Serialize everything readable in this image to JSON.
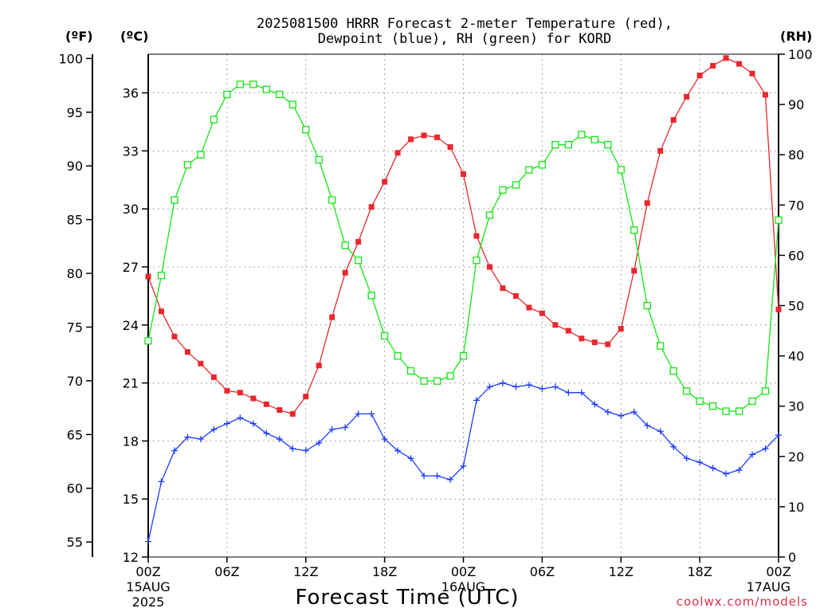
{
  "chart_data": {
    "type": "line",
    "title_line1": "2025081500 HRRR Forecast 2-meter Temperature (red),",
    "title_line2": "Dewpoint (blue), RH (green) for KORD",
    "xlabel": "Forecast Time (UTC)",
    "credit": "coolwx.com/models",
    "units": {
      "fahrenheit": "(ºF)",
      "celsius": "(ºC)",
      "rh": "(RH)"
    },
    "x_hours": [
      0,
      1,
      2,
      3,
      4,
      5,
      6,
      7,
      8,
      9,
      10,
      11,
      12,
      13,
      14,
      15,
      16,
      17,
      18,
      19,
      20,
      21,
      22,
      23,
      24,
      25,
      26,
      27,
      28,
      29,
      30,
      31,
      32,
      33,
      34,
      35,
      36,
      37,
      38,
      39,
      40,
      41,
      42,
      43,
      44,
      45,
      46,
      47,
      48
    ],
    "xlim": [
      0,
      48
    ],
    "celsius_axis": {
      "ylim": [
        12,
        38
      ],
      "ticks": [
        12,
        15,
        18,
        21,
        24,
        27,
        30,
        33,
        36
      ]
    },
    "fahrenheit_axis": {
      "ticks": [
        55,
        60,
        65,
        70,
        75,
        80,
        85,
        90,
        95,
        100
      ]
    },
    "rh_axis": {
      "ylim": [
        0,
        100
      ],
      "ticks": [
        0,
        10,
        20,
        30,
        40,
        50,
        60,
        70,
        80,
        90,
        100
      ]
    },
    "x_ticks": [
      {
        "hour": 0,
        "lines": [
          "00Z",
          "15AUG",
          "2025"
        ]
      },
      {
        "hour": 6,
        "lines": [
          "06Z"
        ]
      },
      {
        "hour": 12,
        "lines": [
          "12Z"
        ]
      },
      {
        "hour": 18,
        "lines": [
          "18Z"
        ]
      },
      {
        "hour": 24,
        "lines": [
          "00Z",
          "16AUG"
        ]
      },
      {
        "hour": 30,
        "lines": [
          "06Z"
        ]
      },
      {
        "hour": 36,
        "lines": [
          "12Z"
        ]
      },
      {
        "hour": 42,
        "lines": [
          "18Z"
        ]
      },
      {
        "hour": 48,
        "lines": [
          "00Z",
          "17AUG"
        ]
      }
    ],
    "grid": true,
    "series": [
      {
        "name": "Temperature",
        "color": "#e8282e",
        "marker": "filled-square",
        "axis": "celsius",
        "values": [
          26.5,
          24.7,
          23.4,
          22.6,
          22.0,
          21.3,
          20.6,
          20.5,
          20.2,
          19.9,
          19.6,
          19.4,
          20.3,
          21.9,
          24.4,
          26.7,
          28.3,
          30.1,
          31.4,
          32.9,
          33.6,
          33.8,
          33.7,
          33.2,
          31.8,
          28.6,
          27.0,
          25.9,
          25.5,
          24.9,
          24.6,
          24.0,
          23.7,
          23.3,
          23.1,
          23.0,
          23.8,
          26.8,
          30.3,
          33.0,
          34.6,
          35.8,
          36.9,
          37.4,
          37.8,
          37.5,
          37.0,
          35.9,
          24.8
        ]
      },
      {
        "name": "Dewpoint",
        "color": "#1e3cff",
        "marker": "plus",
        "axis": "celsius",
        "values": [
          12.8,
          15.9,
          17.5,
          18.2,
          18.1,
          18.6,
          18.9,
          19.2,
          18.9,
          18.4,
          18.1,
          17.6,
          17.5,
          17.9,
          18.6,
          18.7,
          19.4,
          19.4,
          18.1,
          17.5,
          17.1,
          16.2,
          16.2,
          16.0,
          16.7,
          20.1,
          20.8,
          21.0,
          20.8,
          20.9,
          20.7,
          20.8,
          20.5,
          20.5,
          19.9,
          19.5,
          19.3,
          19.5,
          18.8,
          18.5,
          17.7,
          17.1,
          16.9,
          16.6,
          16.3,
          16.5,
          17.3,
          17.6,
          18.3
        ]
      },
      {
        "name": "RH",
        "color": "#14e614",
        "marker": "open-square",
        "axis": "rh",
        "values": [
          43,
          56,
          71,
          78,
          80,
          87,
          92,
          94,
          94,
          93,
          92,
          90,
          85,
          79,
          71,
          62,
          59,
          52,
          44,
          40,
          37,
          35,
          35,
          36,
          40,
          59,
          68,
          73,
          74,
          77,
          78,
          82,
          82,
          84,
          83,
          82,
          77,
          65,
          50,
          42,
          37,
          33,
          31,
          30,
          29,
          29,
          31,
          33,
          67
        ]
      }
    ]
  }
}
